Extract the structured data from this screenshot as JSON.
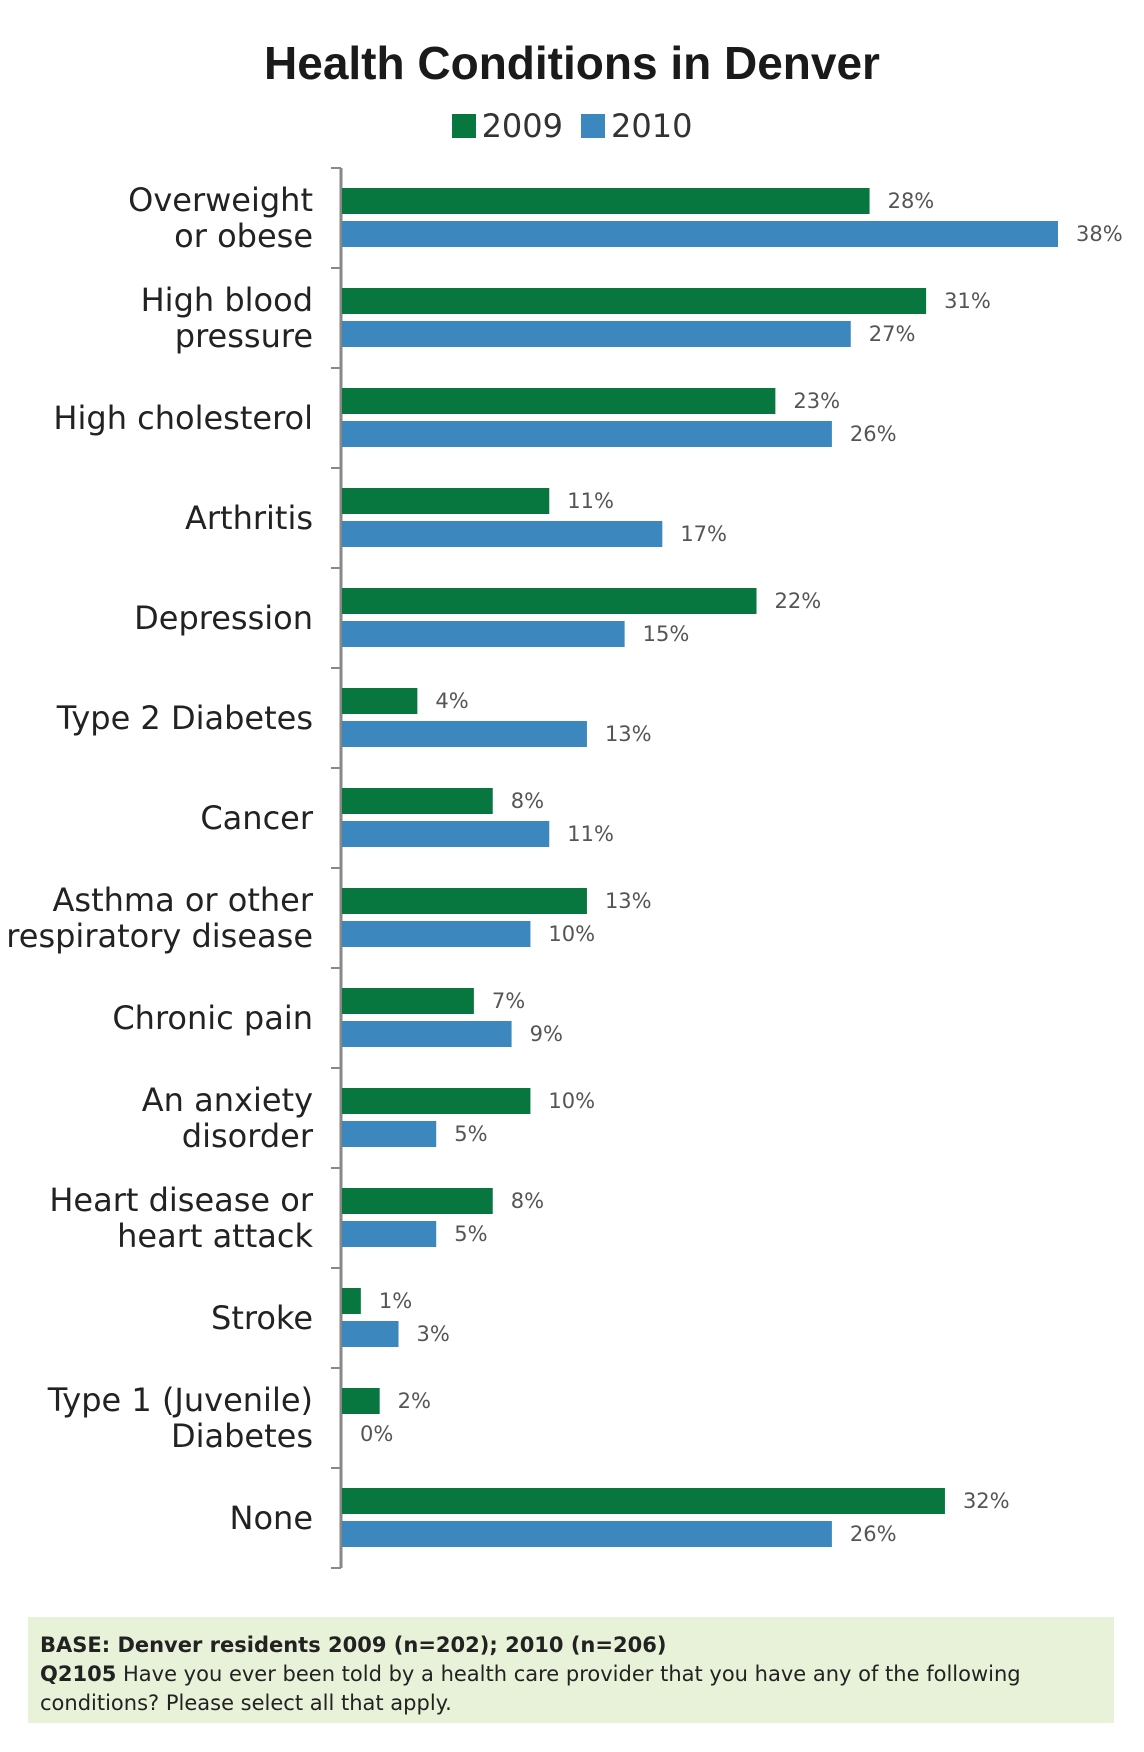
{
  "colors": {
    "s2009": "#08773f",
    "s2010": "#3b87be",
    "axis": "#888888",
    "label": "#555555"
  },
  "footer": {
    "base": "BASE: Denver residents 2009 (n=202); 2010 (n=206)",
    "qid": "Q2105",
    "question": "Have you ever been told by a health care provider that you have any of the following conditions? Please select all that apply."
  },
  "chart_data": {
    "type": "bar",
    "orientation": "horizontal",
    "title": "Health Conditions in Denver",
    "categories": [
      [
        "Overweight",
        "or obese"
      ],
      [
        "High blood",
        "pressure"
      ],
      [
        "High cholesterol"
      ],
      [
        "Arthritis"
      ],
      [
        "Depression"
      ],
      [
        "Type 2 Diabetes"
      ],
      [
        "Cancer"
      ],
      [
        "Asthma or other",
        "respiratory disease"
      ],
      [
        "Chronic pain"
      ],
      [
        "An anxiety",
        "disorder"
      ],
      [
        "Heart disease or",
        "heart attack"
      ],
      [
        "Stroke"
      ],
      [
        "Type 1 (Juvenile)",
        "Diabetes"
      ],
      [
        "None"
      ]
    ],
    "series": [
      {
        "name": "2009",
        "values": [
          28,
          31,
          23,
          11,
          22,
          4,
          8,
          13,
          7,
          10,
          8,
          1,
          2,
          32
        ],
        "labels": [
          "28%",
          "31%",
          "23%",
          "11%",
          "22%",
          "4%",
          "8%",
          "13%",
          "7%",
          "10%",
          "8%",
          "1%",
          "2%",
          "32%"
        ]
      },
      {
        "name": "2010",
        "values": [
          38,
          27,
          26,
          17,
          15,
          13,
          11,
          10,
          9,
          5,
          5,
          3,
          0,
          26
        ],
        "labels": [
          "38%",
          "27%",
          "26%",
          "17%",
          "15%",
          "13%",
          "11%",
          "10%",
          "9%",
          "5%",
          "5%",
          "3%",
          "0%",
          "26%"
        ]
      }
    ],
    "xlim": [
      0,
      38
    ],
    "xlabel": "",
    "ylabel": "",
    "legend": "top-center",
    "grid": false
  }
}
